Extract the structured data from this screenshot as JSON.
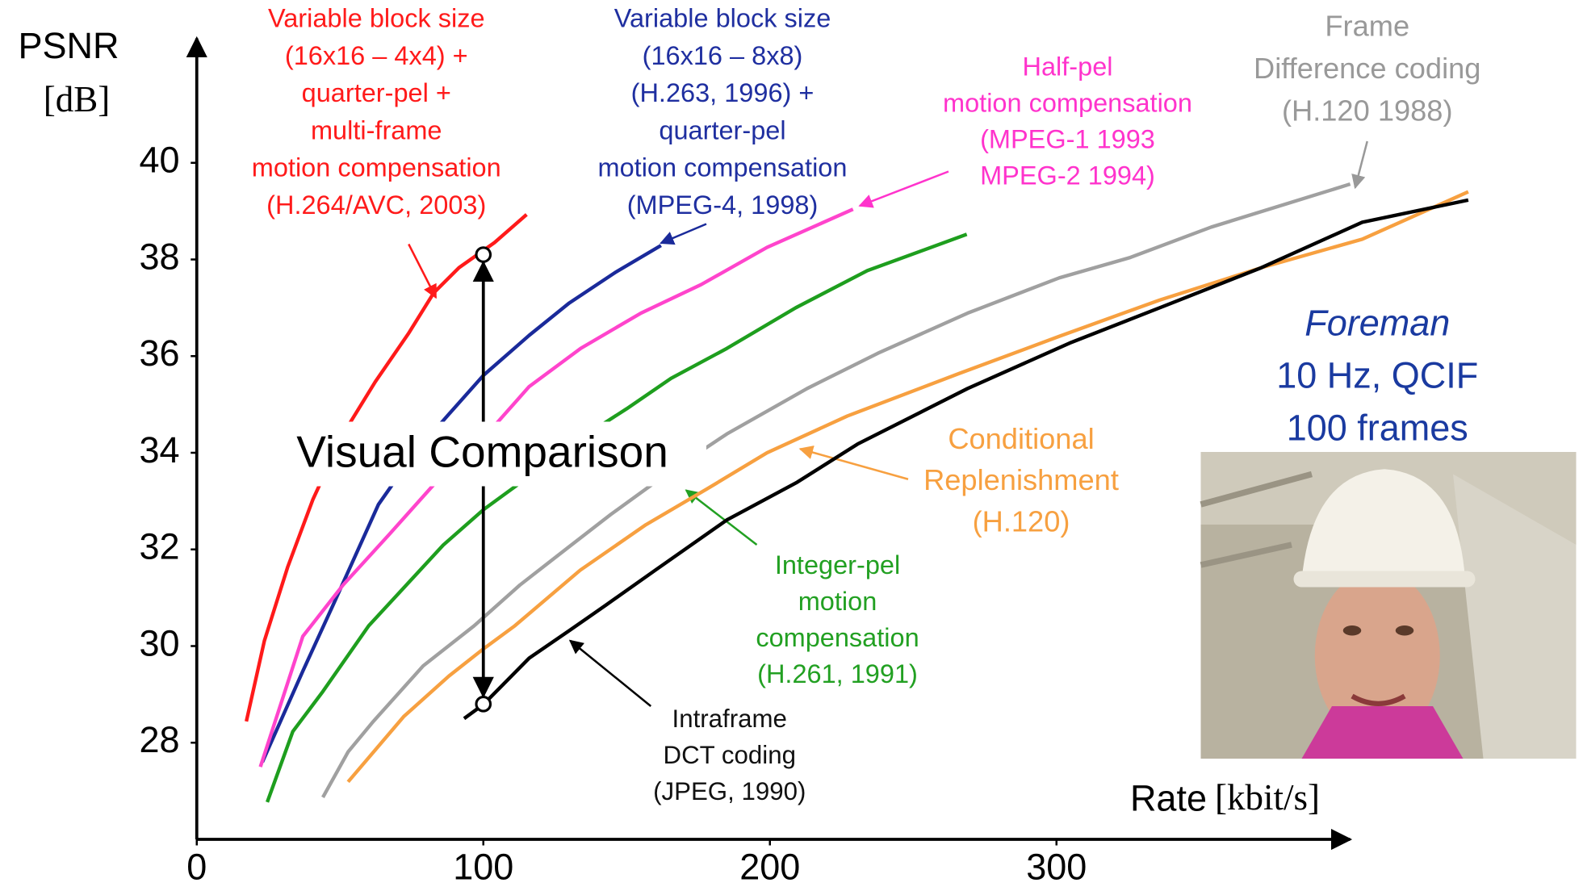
{
  "chart_data": {
    "type": "line",
    "y_label": "PSNR",
    "y_unit": "[dB]",
    "x_label": "Rate",
    "x_unit": "[kbit/s]",
    "xlim": [
      0,
      450
    ],
    "ylim": [
      26,
      42.6
    ],
    "xticks": [
      0,
      100,
      200,
      300
    ],
    "yticks": [
      28,
      30,
      32,
      34,
      36,
      38,
      40
    ],
    "series": [
      {
        "color": "#ff1a1a",
        "x": [
          17.3,
          23.6,
          31.7,
          40.5,
          51.1,
          62.3,
          73.9,
          82.7,
          91.5,
          103.9,
          115.1
        ],
        "values": [
          28.44,
          30.11,
          31.63,
          33.03,
          34.39,
          35.47,
          36.47,
          37.31,
          37.83,
          38.35,
          38.93
        ]
      },
      {
        "color": "#1a2a9a",
        "x": [
          22.9,
          37,
          47.5,
          63.4,
          75.7,
          88,
          100,
          116,
          130,
          146,
          162
        ],
        "values": [
          27.6,
          29.48,
          30.84,
          32.93,
          33.97,
          34.8,
          35.6,
          36.43,
          37.1,
          37.73,
          38.29
        ]
      },
      {
        "color": "#ff44cc",
        "x": [
          22.2,
          37,
          51,
          67,
          82.7,
          100,
          116,
          134,
          155,
          176,
          199,
          229
        ],
        "values": [
          27.5,
          30.2,
          31.26,
          32.3,
          33.34,
          34.3,
          35.37,
          36.16,
          36.89,
          37.48,
          38.25,
          39.04
        ]
      },
      {
        "color": "#1e9e1e",
        "x": [
          24.6,
          33.5,
          44,
          60,
          72,
          86,
          100,
          118,
          134,
          150,
          165.5,
          185,
          209,
          234,
          268.7
        ],
        "values": [
          26.77,
          28.23,
          29.06,
          30.42,
          31.19,
          32.09,
          32.82,
          33.6,
          34.3,
          34.91,
          35.54,
          36.16,
          37.0,
          37.77,
          38.52
        ]
      },
      {
        "color": "#a0a0a0",
        "x": [
          44,
          52.8,
          61.6,
          79,
          96.8,
          112.7,
          128.5,
          144.4,
          163.7,
          185,
          213,
          237.7,
          269,
          301,
          325.7,
          354,
          402.5
        ],
        "values": [
          26.87,
          27.81,
          28.44,
          29.59,
          30.42,
          31.26,
          31.99,
          32.72,
          33.55,
          34.39,
          35.33,
          36.06,
          36.89,
          37.62,
          38.04,
          38.67,
          39.56
        ]
      },
      {
        "color": "#f7a040",
        "x": [
          52.8,
          72.2,
          88,
          100,
          111,
          133.8,
          156.7,
          178,
          199,
          227,
          266,
          301,
          336,
          371.5,
          406.7,
          443.7
        ],
        "values": [
          27.19,
          28.54,
          29.38,
          29.94,
          30.42,
          31.57,
          32.51,
          33.25,
          34.0,
          34.76,
          35.64,
          36.41,
          37.16,
          37.83,
          38.42,
          39.4
        ]
      },
      {
        "color": "#000000",
        "x": [
          93.3,
          100,
          116,
          130,
          142.6,
          160,
          185,
          209.5,
          230.6,
          269,
          304.6,
          336,
          371.5,
          406.7,
          443.7
        ],
        "values": [
          28.5,
          28.79,
          29.75,
          30.32,
          30.84,
          31.57,
          32.61,
          33.39,
          34.18,
          35.33,
          36.27,
          37.0,
          37.83,
          38.77,
          39.23
        ]
      }
    ],
    "comparison": {
      "label": "Visual Comparison",
      "x": 100,
      "y": [
        38.1,
        28.8
      ]
    },
    "annotations": [
      {
        "color": "#ff1a1a",
        "lines": [
          "Variable block size",
          "(16x16 – 4x4) +",
          "quarter-pel +",
          "multi-frame",
          "motion compensation",
          "(H.264/AVC, 2003)"
        ]
      },
      {
        "color": "#1f2fa0",
        "lines": [
          "Variable block size",
          "(16x16 – 8x8)",
          "(H.263, 1996) +",
          "quarter-pel",
          "motion compensation",
          "(MPEG-4, 1998)"
        ]
      },
      {
        "color": "#ff33cc",
        "lines": [
          "Half-pel",
          "motion compensation",
          "(MPEG-1 1993",
          "MPEG-2 1994)"
        ]
      },
      {
        "color": "#999999",
        "lines": [
          "Frame",
          "Difference coding",
          "(H.120 1988)"
        ]
      },
      {
        "color": "#f7a040",
        "lines": [
          "Conditional",
          "Replenishment",
          "(H.120)"
        ]
      },
      {
        "color": "#22a022",
        "lines": [
          "Integer-pel",
          "motion",
          "compensation",
          "(H.261, 1991)"
        ]
      },
      {
        "color": "#111111",
        "lines": [
          "Intraframe",
          "DCT coding",
          "(JPEG, 1990)"
        ]
      },
      {
        "color": "#1a3aa0",
        "lines": [
          "Foreman",
          "10 Hz, QCIF",
          "100 frames"
        ]
      }
    ]
  }
}
